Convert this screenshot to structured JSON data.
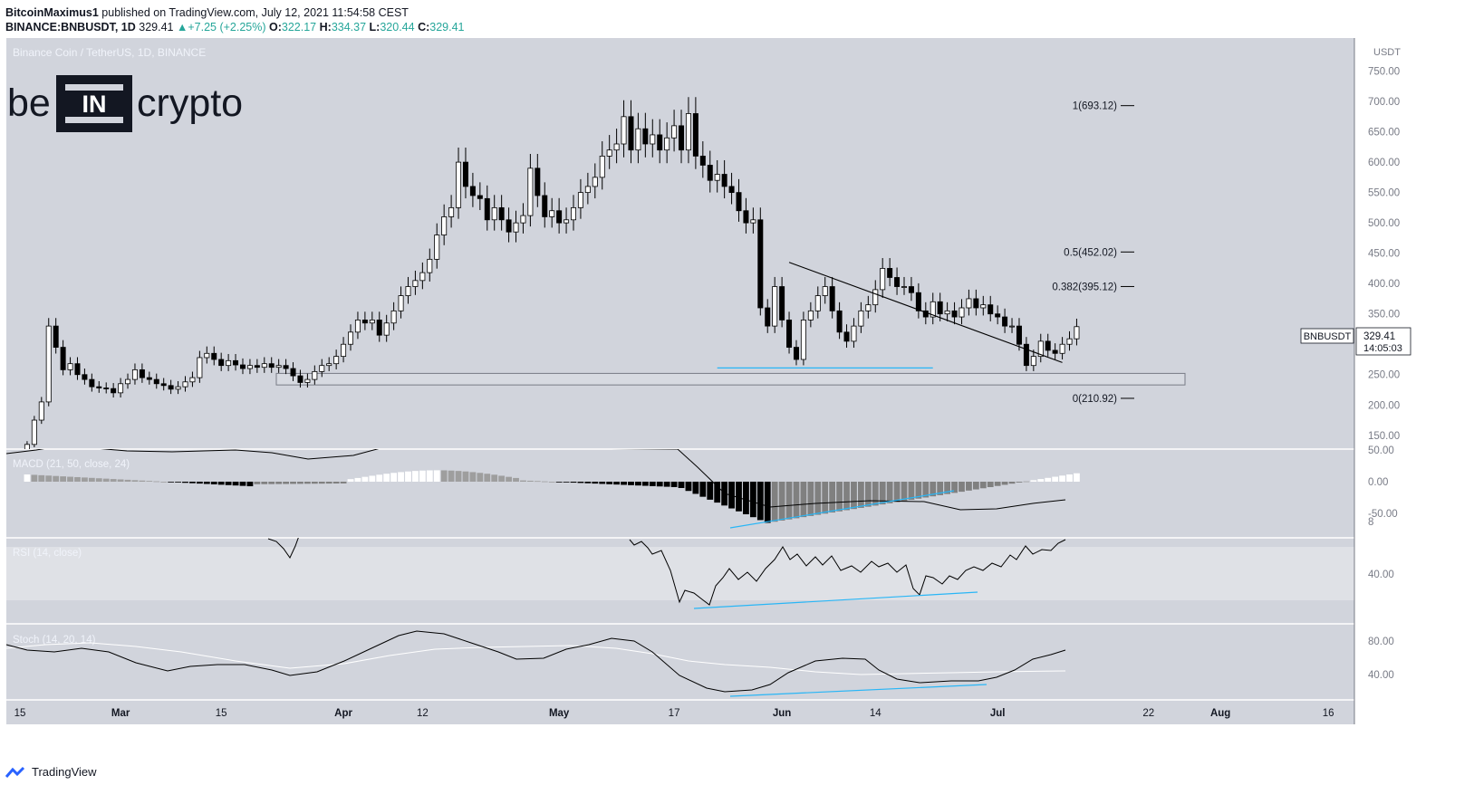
{
  "header": {
    "author": "BitcoinMaximus1",
    "published": "published on TradingView.com, July 12, 2021 11:54:58 CEST",
    "symbol_line": "BINANCE:BNBUSDT, 1D",
    "last_price": "329.41",
    "change": "+7.25 (+2.25%)",
    "o_label": "O:",
    "o_value": "322.17",
    "h_label": "H:",
    "h_value": "334.37",
    "l_label": "L:",
    "l_value": "320.44",
    "c_label": "C:",
    "c_value": "329.41"
  },
  "chart_title": "Binance Coin / TetherUS, 1D, BINANCE",
  "watermark": "beincrypto",
  "footer": {
    "brand": "TradingView"
  },
  "colors": {
    "panel_bg": "#d1d4dc",
    "candle_up": "#ffffff",
    "candle_down": "#000000",
    "support_line": "#29b6f6",
    "hist_light": "#9e9e9e",
    "rsi_band": "#dfe1e6"
  },
  "chart_data": [
    {
      "type": "candlestick",
      "title": "Binance Coin / TetherUS, 1D, BINANCE",
      "ylabel": "USDT",
      "ylim": [
        150,
        800
      ],
      "price_ticks": [
        "150.00",
        "200.00",
        "250.00",
        "300.00",
        "350.00",
        "400.00",
        "450.00",
        "500.00",
        "550.00",
        "600.00",
        "650.00",
        "700.00",
        "750.00",
        "8"
      ],
      "x_ticks": [
        "15",
        "Mar",
        "15",
        "Apr",
        "12",
        "May",
        "17",
        "Jun",
        "14",
        "Jul",
        "22",
        "Aug",
        "16"
      ],
      "price_label": {
        "symbol": "BNBUSDT",
        "value": "329.41",
        "countdown": "14:05:03"
      },
      "fib_levels": [
        {
          "label": "1(693.12)",
          "value": 693.12
        },
        {
          "label": "0.5(452.02)",
          "value": 452.02
        },
        {
          "label": "0.382(395.12)",
          "value": 395.12
        },
        {
          "label": "0(210.92)",
          "value": 210.92
        }
      ],
      "support_zone": [
        233,
        252
      ],
      "descending_trendline": [
        {
          "date": "2021-06-02",
          "price": 435
        },
        {
          "date": "2021-07-10",
          "price": 270
        }
      ],
      "support_line": [
        {
          "date": "2021-05-23",
          "price": 261
        },
        {
          "date": "2021-06-22",
          "price": 261
        }
      ],
      "daily_closes": [
        {
          "date": "2021-02-16",
          "close": 135
        },
        {
          "date": "2021-02-17",
          "close": 175
        },
        {
          "date": "2021-02-18",
          "close": 205
        },
        {
          "date": "2021-02-19",
          "close": 330
        },
        {
          "date": "2021-02-20",
          "close": 295
        },
        {
          "date": "2021-02-21",
          "close": 258
        },
        {
          "date": "2021-02-22",
          "close": 268
        },
        {
          "date": "2021-02-23",
          "close": 250
        },
        {
          "date": "2021-02-24",
          "close": 242
        },
        {
          "date": "2021-02-25",
          "close": 230
        },
        {
          "date": "2021-02-26",
          "close": 228
        },
        {
          "date": "2021-02-27",
          "close": 227
        },
        {
          "date": "2021-02-28",
          "close": 220
        },
        {
          "date": "2021-03-01",
          "close": 235
        },
        {
          "date": "2021-03-02",
          "close": 242
        },
        {
          "date": "2021-03-03",
          "close": 258
        },
        {
          "date": "2021-03-04",
          "close": 245
        },
        {
          "date": "2021-03-05",
          "close": 242
        },
        {
          "date": "2021-03-06",
          "close": 235
        },
        {
          "date": "2021-03-07",
          "close": 232
        },
        {
          "date": "2021-03-08",
          "close": 226
        },
        {
          "date": "2021-03-09",
          "close": 230
        },
        {
          "date": "2021-03-10",
          "close": 238
        },
        {
          "date": "2021-03-11",
          "close": 245
        },
        {
          "date": "2021-03-12",
          "close": 278
        },
        {
          "date": "2021-03-13",
          "close": 285
        },
        {
          "date": "2021-03-14",
          "close": 275
        },
        {
          "date": "2021-03-15",
          "close": 265
        },
        {
          "date": "2021-03-16",
          "close": 273
        },
        {
          "date": "2021-03-17",
          "close": 266
        },
        {
          "date": "2021-03-18",
          "close": 260
        },
        {
          "date": "2021-03-19",
          "close": 265
        },
        {
          "date": "2021-03-20",
          "close": 262
        },
        {
          "date": "2021-03-21",
          "close": 268
        },
        {
          "date": "2021-03-22",
          "close": 262
        },
        {
          "date": "2021-03-23",
          "close": 265
        },
        {
          "date": "2021-03-24",
          "close": 260
        },
        {
          "date": "2021-03-25",
          "close": 248
        },
        {
          "date": "2021-03-26",
          "close": 237
        },
        {
          "date": "2021-03-27",
          "close": 242
        },
        {
          "date": "2021-03-28",
          "close": 255
        },
        {
          "date": "2021-03-29",
          "close": 265
        },
        {
          "date": "2021-03-30",
          "close": 268
        },
        {
          "date": "2021-03-31",
          "close": 280
        },
        {
          "date": "2021-04-01",
          "close": 300
        },
        {
          "date": "2021-04-02",
          "close": 320
        },
        {
          "date": "2021-04-03",
          "close": 340
        },
        {
          "date": "2021-04-04",
          "close": 335
        },
        {
          "date": "2021-04-05",
          "close": 340
        },
        {
          "date": "2021-04-06",
          "close": 315
        },
        {
          "date": "2021-04-07",
          "close": 335
        },
        {
          "date": "2021-04-08",
          "close": 355
        },
        {
          "date": "2021-04-09",
          "close": 380
        },
        {
          "date": "2021-04-10",
          "close": 395
        },
        {
          "date": "2021-04-11",
          "close": 405
        },
        {
          "date": "2021-04-12",
          "close": 418
        },
        {
          "date": "2021-04-13",
          "close": 440
        },
        {
          "date": "2021-04-14",
          "close": 480
        },
        {
          "date": "2021-04-15",
          "close": 510
        },
        {
          "date": "2021-04-16",
          "close": 525
        },
        {
          "date": "2021-04-17",
          "close": 600
        },
        {
          "date": "2021-04-18",
          "close": 560
        },
        {
          "date": "2021-04-19",
          "close": 545
        },
        {
          "date": "2021-04-20",
          "close": 540
        },
        {
          "date": "2021-04-21",
          "close": 505
        },
        {
          "date": "2021-04-22",
          "close": 525
        },
        {
          "date": "2021-04-23",
          "close": 505
        },
        {
          "date": "2021-04-24",
          "close": 485
        },
        {
          "date": "2021-04-25",
          "close": 500
        },
        {
          "date": "2021-04-26",
          "close": 512
        },
        {
          "date": "2021-04-27",
          "close": 590
        },
        {
          "date": "2021-04-28",
          "close": 545
        },
        {
          "date": "2021-04-29",
          "close": 510
        },
        {
          "date": "2021-04-30",
          "close": 520
        },
        {
          "date": "2021-05-01",
          "close": 500
        },
        {
          "date": "2021-05-02",
          "close": 505
        },
        {
          "date": "2021-05-03",
          "close": 525
        },
        {
          "date": "2021-05-04",
          "close": 550
        },
        {
          "date": "2021-05-05",
          "close": 560
        },
        {
          "date": "2021-05-06",
          "close": 575
        },
        {
          "date": "2021-05-07",
          "close": 610
        },
        {
          "date": "2021-05-08",
          "close": 620
        },
        {
          "date": "2021-05-09",
          "close": 630
        },
        {
          "date": "2021-05-10",
          "close": 675
        },
        {
          "date": "2021-05-11",
          "close": 620
        },
        {
          "date": "2021-05-12",
          "close": 655
        },
        {
          "date": "2021-05-13",
          "close": 630
        },
        {
          "date": "2021-05-14",
          "close": 645
        },
        {
          "date": "2021-05-15",
          "close": 620
        },
        {
          "date": "2021-05-16",
          "close": 640
        },
        {
          "date": "2021-05-17",
          "close": 660
        },
        {
          "date": "2021-05-18",
          "close": 620
        },
        {
          "date": "2021-05-19",
          "close": 680
        },
        {
          "date": "2021-05-20",
          "close": 610
        },
        {
          "date": "2021-05-21",
          "close": 595
        },
        {
          "date": "2021-05-22",
          "close": 570
        },
        {
          "date": "2021-05-23",
          "close": 580
        },
        {
          "date": "2021-05-24",
          "close": 560
        },
        {
          "date": "2021-05-25",
          "close": 550
        },
        {
          "date": "2021-05-26",
          "close": 520
        },
        {
          "date": "2021-05-27",
          "close": 500
        },
        {
          "date": "2021-05-28",
          "close": 505
        },
        {
          "date": "2021-05-29",
          "close": 360
        },
        {
          "date": "2021-05-30",
          "close": 330
        },
        {
          "date": "2021-05-31",
          "close": 395
        },
        {
          "date": "2021-06-01",
          "close": 340
        },
        {
          "date": "2021-06-02",
          "close": 295
        },
        {
          "date": "2021-06-03",
          "close": 275
        },
        {
          "date": "2021-06-04",
          "close": 340
        },
        {
          "date": "2021-06-05",
          "close": 355
        },
        {
          "date": "2021-06-06",
          "close": 380
        },
        {
          "date": "2021-06-07",
          "close": 395
        },
        {
          "date": "2021-06-08",
          "close": 355
        },
        {
          "date": "2021-06-09",
          "close": 320
        },
        {
          "date": "2021-06-10",
          "close": 305
        },
        {
          "date": "2021-06-11",
          "close": 330
        },
        {
          "date": "2021-06-12",
          "close": 355
        },
        {
          "date": "2021-06-13",
          "close": 365
        },
        {
          "date": "2021-06-14",
          "close": 390
        },
        {
          "date": "2021-06-15",
          "close": 425
        },
        {
          "date": "2021-06-16",
          "close": 410
        },
        {
          "date": "2021-06-17",
          "close": 395
        },
        {
          "date": "2021-06-18",
          "close": 395
        },
        {
          "date": "2021-06-19",
          "close": 385
        },
        {
          "date": "2021-06-20",
          "close": 355
        },
        {
          "date": "2021-06-21",
          "close": 345
        },
        {
          "date": "2021-06-22",
          "close": 370
        },
        {
          "date": "2021-06-23",
          "close": 350
        },
        {
          "date": "2021-06-24",
          "close": 355
        },
        {
          "date": "2021-06-25",
          "close": 345
        },
        {
          "date": "2021-06-26",
          "close": 360
        },
        {
          "date": "2021-06-27",
          "close": 375
        },
        {
          "date": "2021-06-28",
          "close": 360
        },
        {
          "date": "2021-06-29",
          "close": 365
        },
        {
          "date": "2021-06-30",
          "close": 350
        },
        {
          "date": "2021-07-01",
          "close": 345
        },
        {
          "date": "2021-07-02",
          "close": 330
        },
        {
          "date": "2021-07-03",
          "close": 330
        },
        {
          "date": "2021-07-04",
          "close": 300
        },
        {
          "date": "2021-07-05",
          "close": 265
        },
        {
          "date": "2021-07-06",
          "close": 280
        },
        {
          "date": "2021-07-07",
          "close": 305
        },
        {
          "date": "2021-07-08",
          "close": 290
        },
        {
          "date": "2021-07-09",
          "close": 285
        },
        {
          "date": "2021-07-10",
          "close": 300
        },
        {
          "date": "2021-07-11",
          "close": 309
        },
        {
          "date": "2021-07-12",
          "close": 329
        }
      ]
    },
    {
      "type": "bar",
      "title": "MACD (21, 50, close, 24)",
      "ylim": [
        -70,
        50
      ],
      "y_ticks": [
        "50.00",
        "0.00",
        "-50.00"
      ]
    },
    {
      "type": "line",
      "title": "RSI (14, close)",
      "ylim": [
        20,
        75
      ],
      "y_ticks": [
        "40.00"
      ],
      "band": [
        30,
        70
      ]
    },
    {
      "type": "line",
      "title": "Stoch (14, 20, 14)",
      "ylim": [
        15,
        100
      ],
      "y_ticks": [
        "80.00",
        "40.00"
      ]
    }
  ]
}
